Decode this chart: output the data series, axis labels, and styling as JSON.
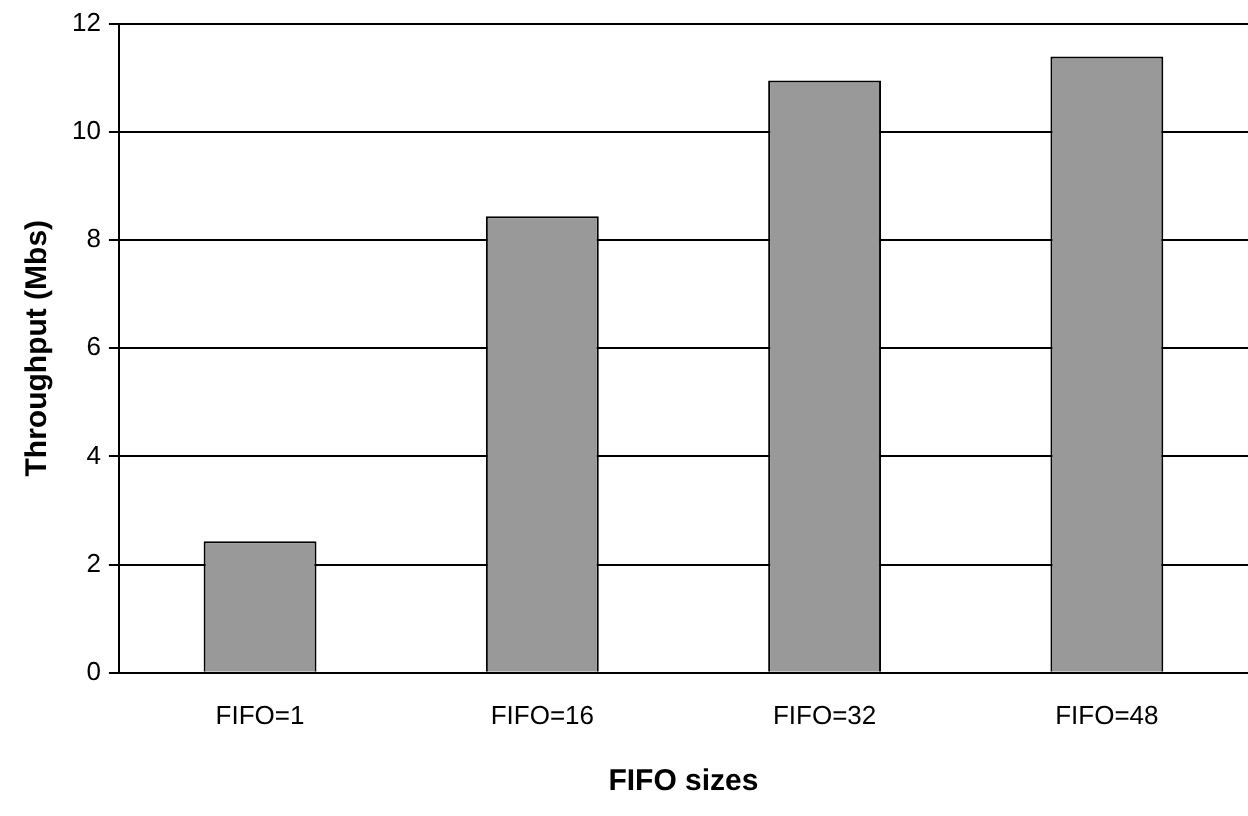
{
  "chart_data": {
    "type": "bar",
    "xlabel": "FIFO sizes",
    "ylabel": "Throughput (Mbs)",
    "categories": [
      "FIFO=1",
      "FIFO=16",
      "FIFO=32",
      "FIFO=48"
    ],
    "values": [
      2.43,
      8.44,
      10.95,
      11.39
    ],
    "color": "#999999",
    "ylim": [
      0,
      12
    ],
    "yticks": [
      0,
      2,
      4,
      6,
      8,
      10,
      12
    ],
    "grid": "y",
    "legend": false
  }
}
